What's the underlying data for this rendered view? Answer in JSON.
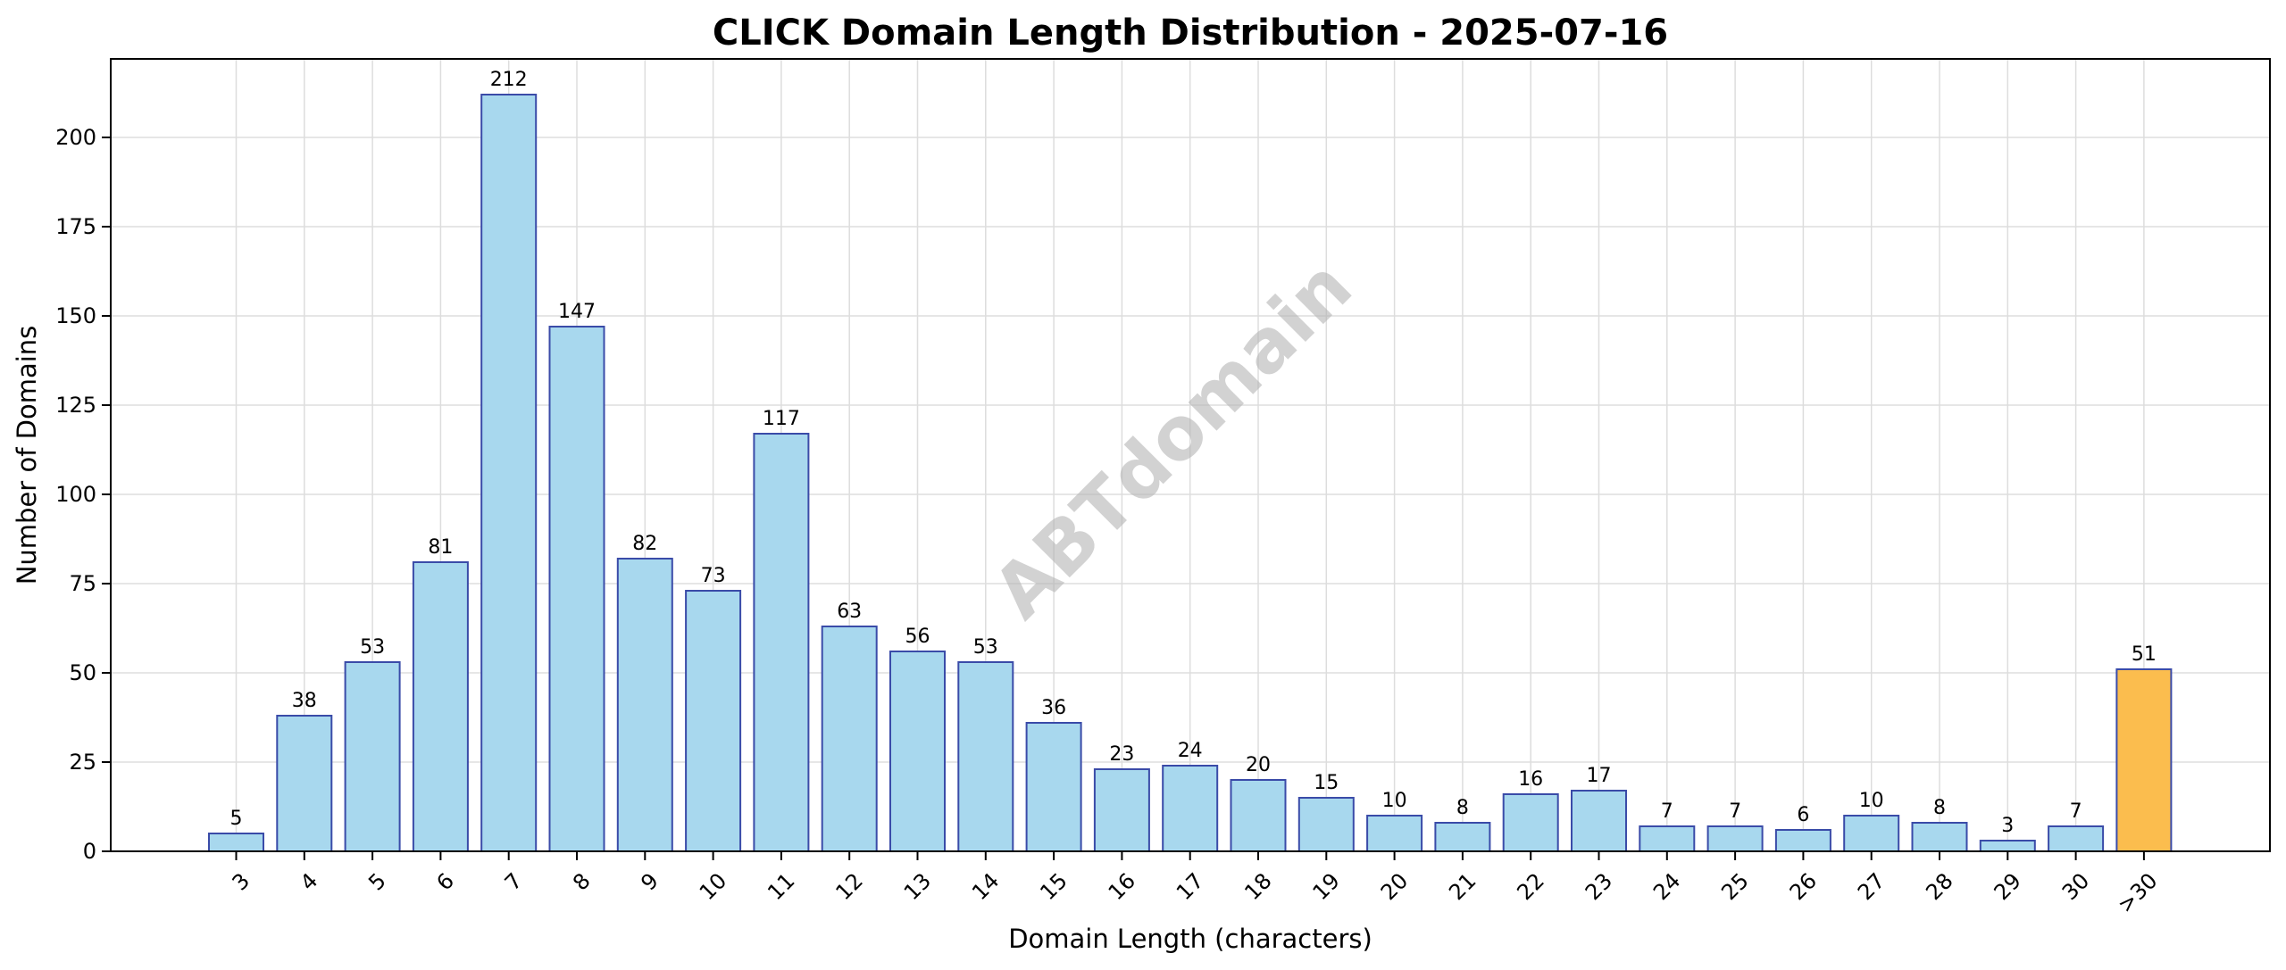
{
  "chart_data": {
    "type": "bar",
    "title": "CLICK Domain Length Distribution - 2025-07-16",
    "xlabel": "Domain Length (characters)",
    "ylabel": "Number of Domains",
    "categories": [
      "3",
      "4",
      "5",
      "6",
      "7",
      "8",
      "9",
      "10",
      "11",
      "12",
      "13",
      "14",
      "15",
      "16",
      "17",
      "18",
      "19",
      "20",
      "21",
      "22",
      "23",
      "24",
      "25",
      "26",
      "27",
      "28",
      "29",
      "30",
      ">30"
    ],
    "values": [
      5,
      38,
      53,
      81,
      212,
      147,
      82,
      73,
      117,
      63,
      56,
      53,
      36,
      23,
      24,
      20,
      15,
      10,
      8,
      16,
      17,
      7,
      7,
      6,
      10,
      8,
      3,
      7,
      51
    ],
    "ylim": [
      0,
      222
    ],
    "yticks": [
      0,
      25,
      50,
      75,
      100,
      125,
      150,
      175,
      200
    ],
    "grid": true,
    "colors": {
      "bar_fill": "#a8d8ee",
      "bar_stroke": "#3a4ba8",
      "highlight_fill": "#fbbd4e",
      "highlight_category": ">30",
      "grid": "#dddddd"
    },
    "watermark": "ABTdomain"
  }
}
